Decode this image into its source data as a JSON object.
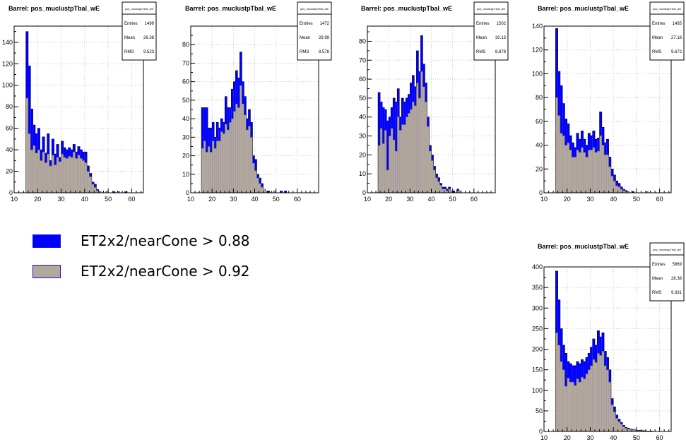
{
  "legend": {
    "items": [
      {
        "label": "ET2x2/nearCone > 0.88",
        "color": "#0000ff"
      },
      {
        "label": "ET2x2/nearCone > 0.92",
        "color": "#b2a89b"
      }
    ]
  },
  "colors": {
    "primary_fill": "#0000ff",
    "secondary_fill": "#b2a89b",
    "outline": "#000000",
    "grid": "#c8c8c8"
  },
  "chart_data": [
    {
      "type": "bar",
      "title": "Barrel: pos_muclustpTbal_wE",
      "stats_box": {
        "name": "pos_muclustpTbal_wE",
        "entries": "1499",
        "mean": "26.38",
        "rms": "9.523"
      },
      "xlim": [
        10,
        65
      ],
      "ylim": [
        0,
        155
      ],
      "xticks": [
        10,
        20,
        30,
        40,
        50,
        60
      ],
      "yticks": [
        0,
        20,
        40,
        60,
        80,
        100,
        120,
        140
      ],
      "bin_start": 15,
      "bin_width": 1,
      "series": [
        {
          "values": [
            150,
            118,
            78,
            63,
            55,
            60,
            40,
            52,
            37,
            55,
            30,
            50,
            36,
            45,
            33,
            48,
            42,
            40,
            42,
            40,
            45,
            38,
            43,
            40,
            38,
            38,
            25,
            18,
            10,
            8,
            3,
            1,
            0,
            0,
            1,
            0,
            0,
            1,
            0,
            1,
            0,
            0,
            1,
            0,
            0,
            0,
            0,
            0
          ]
        },
        {
          "values": [
            88,
            55,
            40,
            44,
            37,
            40,
            30,
            38,
            28,
            36,
            25,
            35,
            26,
            33,
            29,
            36,
            33,
            32,
            34,
            33,
            38,
            32,
            35,
            32,
            30,
            28,
            20,
            15,
            8,
            5,
            2,
            1,
            0,
            0,
            1,
            0,
            0,
            0,
            0,
            1,
            0,
            0,
            0,
            0,
            0,
            0,
            0,
            0
          ]
        }
      ]
    },
    {
      "type": "bar",
      "title": "Barrel: pos_muclustpTbal_wE",
      "stats_box": {
        "name": "pos_muclustpTbal_wE",
        "entries": "1472",
        "mean": "29.99",
        "rms": "8.578"
      },
      "xlim": [
        10,
        70
      ],
      "ylim": [
        0,
        90
      ],
      "xticks": [
        10,
        20,
        30,
        40,
        50,
        60
      ],
      "yticks": [
        0,
        10,
        20,
        30,
        40,
        50,
        60,
        70,
        80
      ],
      "bin_start": 15,
      "bin_width": 1,
      "series": [
        {
          "values": [
            46,
            46,
            46,
            35,
            35,
            38,
            30,
            38,
            35,
            40,
            38,
            52,
            46,
            46,
            56,
            60,
            66,
            62,
            76,
            60,
            52,
            40,
            45,
            38,
            20,
            18,
            10,
            8,
            5,
            2,
            1,
            1,
            0,
            0,
            1,
            0,
            0,
            1,
            0,
            1,
            0,
            0,
            0,
            0,
            0,
            0,
            0,
            0
          ]
        },
        {
          "values": [
            24,
            28,
            22,
            25,
            22,
            28,
            24,
            28,
            28,
            33,
            32,
            37,
            34,
            38,
            40,
            44,
            48,
            46,
            58,
            48,
            42,
            34,
            36,
            30,
            16,
            12,
            8,
            5,
            3,
            2,
            1,
            0,
            0,
            0,
            1,
            0,
            0,
            0,
            0,
            0,
            0,
            0,
            0,
            0,
            0,
            0,
            0,
            0
          ]
        }
      ]
    },
    {
      "type": "bar",
      "title": "Barrel: pos_muclustpTbal_wE",
      "stats_box": {
        "name": "pos_muclustpTbal_wE",
        "entries": "1502",
        "mean": "30.13",
        "rms": "8.878"
      },
      "xlim": [
        10,
        70
      ],
      "ylim": [
        0,
        88
      ],
      "xticks": [
        10,
        20,
        30,
        40,
        50,
        60
      ],
      "yticks": [
        0,
        10,
        20,
        30,
        40,
        50,
        60,
        70,
        80
      ],
      "bin_start": 15,
      "bin_width": 1,
      "series": [
        {
          "values": [
            53,
            48,
            45,
            44,
            38,
            40,
            45,
            50,
            48,
            55,
            40,
            50,
            48,
            50,
            52,
            58,
            62,
            56,
            75,
            64,
            83,
            68,
            58,
            40,
            25,
            20,
            14,
            10,
            8,
            5,
            3,
            3,
            2,
            3,
            1,
            1,
            0,
            2,
            1,
            0,
            0,
            0,
            0,
            0,
            0,
            0,
            0,
            0
          ]
        },
        {
          "values": [
            25,
            34,
            26,
            33,
            12,
            30,
            34,
            28,
            22,
            40,
            33,
            36,
            36,
            40,
            42,
            44,
            48,
            46,
            58,
            50,
            64,
            56,
            48,
            35,
            22,
            17,
            12,
            8,
            6,
            4,
            2,
            2,
            1,
            2,
            1,
            0,
            0,
            1,
            1,
            0,
            0,
            0,
            0,
            0,
            0,
            0,
            0,
            0
          ]
        }
      ]
    },
    {
      "type": "bar",
      "title": "Barrel: pos_muclustpTbal_wE",
      "stats_box": {
        "name": "pos_muclustpTbal_wE",
        "entries": "1465",
        "mean": "27.18",
        "rms": "9.672"
      },
      "xlim": [
        10,
        65
      ],
      "ylim": [
        0,
        140
      ],
      "xticks": [
        10,
        20,
        30,
        40,
        50,
        60
      ],
      "yticks": [
        0,
        20,
        40,
        60,
        80,
        100,
        120,
        140
      ],
      "bin_start": 15,
      "bin_width": 1,
      "series": [
        {
          "values": [
            138,
            102,
            90,
            75,
            62,
            58,
            48,
            42,
            38,
            50,
            45,
            52,
            45,
            40,
            50,
            48,
            52,
            45,
            46,
            68,
            55,
            42,
            45,
            30,
            20,
            15,
            10,
            8,
            5,
            3,
            2,
            1,
            0,
            1,
            0,
            0,
            0,
            0,
            0,
            1,
            0,
            0,
            0,
            0,
            0,
            0,
            0,
            0
          ]
        },
        {
          "values": [
            80,
            65,
            50,
            48,
            40,
            42,
            36,
            30,
            30,
            36,
            34,
            38,
            34,
            30,
            36,
            36,
            38,
            34,
            35,
            48,
            40,
            32,
            32,
            22,
            14,
            10,
            6,
            5,
            3,
            2,
            1,
            1,
            0,
            0,
            0,
            0,
            0,
            0,
            0,
            1,
            0,
            0,
            0,
            0,
            0,
            0,
            0,
            0
          ]
        }
      ]
    },
    {
      "type": "bar",
      "title": "Barrel: pos_muclustpTbal_wE",
      "stats_box": {
        "name": "pos_muclustpTbal_wE",
        "entries": "5969",
        "mean": "28.38",
        "rms": "9.331"
      },
      "xlim": [
        10,
        65
      ],
      "ylim": [
        0,
        400
      ],
      "xticks": [
        10,
        20,
        30,
        40,
        50,
        60
      ],
      "yticks": [
        0,
        50,
        100,
        150,
        200,
        250,
        300,
        350,
        400
      ],
      "bin_start": 15,
      "bin_width": 1,
      "series": [
        {
          "values": [
            390,
            320,
            250,
            210,
            190,
            170,
            165,
            160,
            160,
            170,
            165,
            175,
            170,
            180,
            190,
            205,
            225,
            210,
            245,
            230,
            240,
            195,
            180,
            150,
            80,
            60,
            40,
            30,
            22,
            15,
            10,
            8,
            6,
            5,
            4,
            3,
            3,
            2,
            2,
            1,
            1,
            1,
            0,
            0,
            0,
            0,
            0,
            0
          ]
        },
        {
          "values": [
            240,
            210,
            170,
            150,
            110,
            130,
            120,
            120,
            112,
            128,
            120,
            132,
            128,
            140,
            150,
            160,
            175,
            168,
            190,
            185,
            195,
            160,
            150,
            120,
            65,
            48,
            32,
            24,
            18,
            12,
            8,
            6,
            5,
            4,
            3,
            2,
            2,
            1,
            1,
            1,
            0,
            0,
            0,
            0,
            0,
            0,
            0,
            0
          ]
        }
      ]
    }
  ]
}
